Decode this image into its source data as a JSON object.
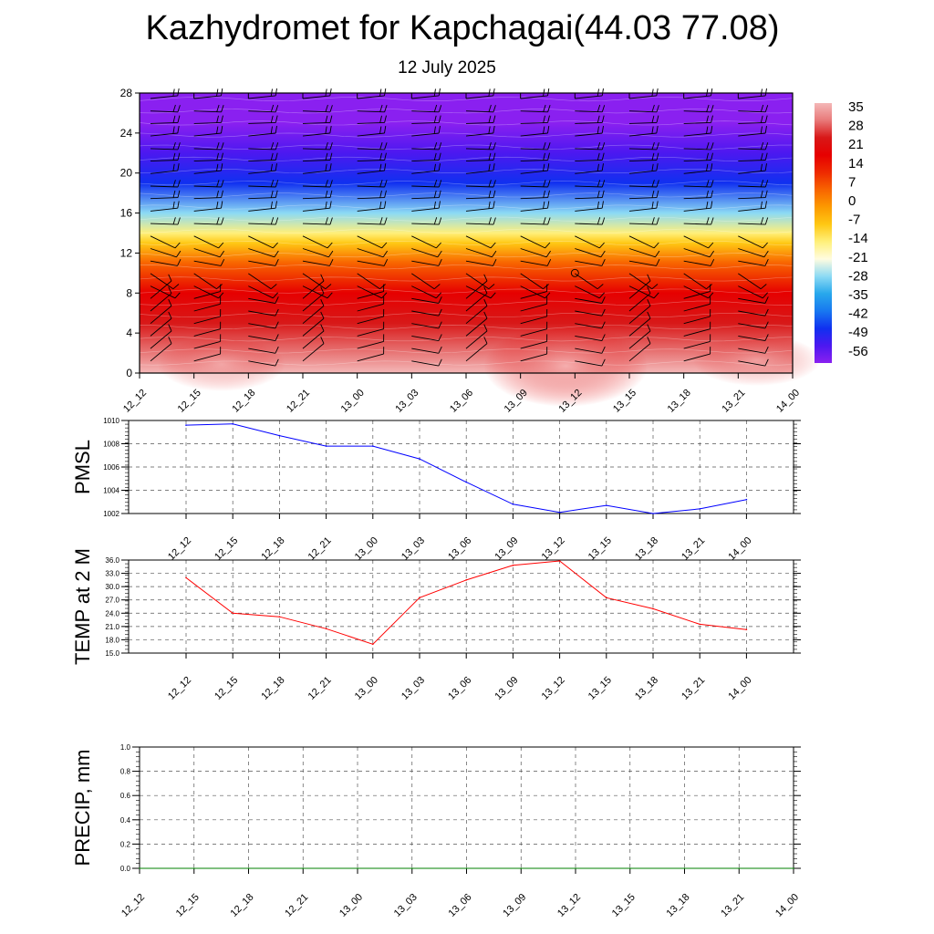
{
  "header": {
    "title": "Kazhydromet for Kapchagai(44.03 77.08)",
    "subtitle": "12 July 2025"
  },
  "time_labels": [
    "12_12",
    "12_15",
    "12_18",
    "12_21",
    "13_00",
    "13_03",
    "13_06",
    "13_09",
    "13_12",
    "13_15",
    "13_18",
    "13_21",
    "14_00"
  ],
  "chart_data": [
    {
      "type": "heatmap",
      "title": "",
      "xlabel": "",
      "ylabel": "",
      "x": [
        "12_12",
        "12_15",
        "12_18",
        "12_21",
        "13_00",
        "13_03",
        "13_06",
        "13_09",
        "13_12",
        "13_15",
        "13_18",
        "13_21",
        "14_00"
      ],
      "y_ticks": [
        0,
        4,
        8,
        12,
        16,
        20,
        24,
        28
      ],
      "ylim": [
        0,
        28
      ],
      "colorbar": {
        "labels": [
          35,
          28,
          21,
          14,
          7,
          0,
          -7,
          -14,
          -21,
          -28,
          -35,
          -42,
          -49,
          -56
        ],
        "colors": [
          "#f4b8b8",
          "#e87878",
          "#d81818",
          "#e60000",
          "#ee2a00",
          "#f86400",
          "#fc9a00",
          "#ffc814",
          "#fff07a",
          "#fffce0",
          "#8cdaf4",
          "#28a8ec",
          "#1878f0",
          "#1030f0",
          "#4c18f0",
          "#8a20f0"
        ]
      },
      "temperature_profile": [
        {
          "height": 0,
          "value": 35
        },
        {
          "height": 2,
          "value": 31
        },
        {
          "height": 5,
          "value": 24
        },
        {
          "height": 8,
          "value": 14
        },
        {
          "height": 11,
          "value": 3
        },
        {
          "height": 13,
          "value": -10
        },
        {
          "height": 14,
          "value": -16
        },
        {
          "height": 16,
          "value": -28
        },
        {
          "height": 19,
          "value": -42
        },
        {
          "height": 22,
          "value": -52
        },
        {
          "height": 25,
          "value": -56
        },
        {
          "height": 28,
          "value": -58
        }
      ],
      "overlay": "wind barbs"
    },
    {
      "type": "line",
      "ylabel": "PMSL",
      "categories": [
        "12_12",
        "12_15",
        "12_18",
        "12_21",
        "13_00",
        "13_03",
        "13_06",
        "13_09",
        "13_12",
        "13_15",
        "13_18",
        "13_21",
        "14_00"
      ],
      "values": [
        1009.6,
        1009.7,
        1008.7,
        1007.8,
        1007.8,
        1006.7,
        1004.7,
        1002.8,
        1002.1,
        1002.7,
        1002.0,
        1002.4,
        1003.2
      ],
      "y_ticks": [
        1002,
        1004,
        1006,
        1008,
        1010
      ],
      "ylim": [
        1002,
        1010
      ],
      "color": "#0000ff",
      "grid": true
    },
    {
      "type": "line",
      "ylabel": "TEMP at 2 M",
      "categories": [
        "12_12",
        "12_15",
        "12_18",
        "12_21",
        "13_00",
        "13_03",
        "13_06",
        "13_09",
        "13_12",
        "13_15",
        "13_18",
        "13_21",
        "14_00"
      ],
      "values": [
        32.0,
        24.0,
        23.2,
        20.5,
        17.0,
        27.5,
        31.5,
        34.8,
        35.8,
        27.5,
        25.0,
        21.5,
        20.3
      ],
      "y_ticks": [
        "15.0",
        "18.0",
        "21.0",
        "24.0",
        "27.0",
        "30.0",
        "33.0",
        "36.0"
      ],
      "ylim": [
        15,
        36
      ],
      "color": "#ff0000",
      "grid": true
    },
    {
      "type": "line",
      "ylabel": "PRECIP, mm",
      "categories": [
        "12_12",
        "12_15",
        "12_18",
        "12_21",
        "13_00",
        "13_03",
        "13_06",
        "13_09",
        "13_12",
        "13_15",
        "13_18",
        "13_21",
        "14_00"
      ],
      "values": [
        0,
        0,
        0,
        0,
        0,
        0,
        0,
        0,
        0,
        0,
        0,
        0,
        0
      ],
      "y_ticks": [
        "0.0",
        "0.2",
        "0.4",
        "0.6",
        "0.8",
        "1.0"
      ],
      "ylim": [
        0,
        1
      ],
      "color": "#008000",
      "grid": true
    }
  ]
}
